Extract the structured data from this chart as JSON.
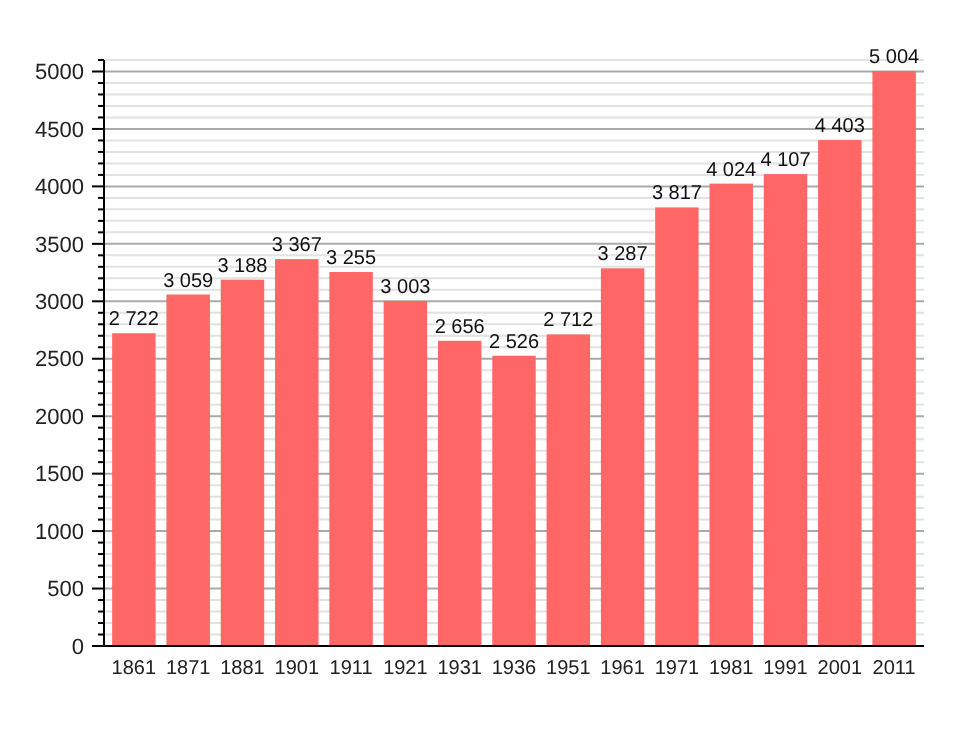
{
  "chart_data": {
    "type": "bar",
    "categories": [
      "1861",
      "1871",
      "1881",
      "1901",
      "1911",
      "1921",
      "1931",
      "1936",
      "1951",
      "1961",
      "1971",
      "1981",
      "1991",
      "2001",
      "2011"
    ],
    "values": [
      2722,
      3059,
      3188,
      3367,
      3255,
      3003,
      2656,
      2526,
      2712,
      3287,
      3817,
      4024,
      4107,
      4403,
      5004
    ],
    "value_labels": [
      "2 722",
      "3 059",
      "3 188",
      "3 367",
      "3 255",
      "3 003",
      "2 656",
      "2 526",
      "2 712",
      "3 287",
      "3 817",
      "4 024",
      "4 107",
      "4 403",
      "5 004"
    ],
    "color": "#ff6666",
    "ylim": [
      0,
      5100
    ],
    "yticks": [
      0,
      {
        "value": 100,
        "label": null
      },
      {
        "value": 200,
        "label": null
      },
      {
        "value": 300,
        "label": null
      },
      {
        "value": 400,
        "label": null
      },
      500,
      {
        "value": 600,
        "label": null
      },
      {
        "value": 700,
        "label": null
      },
      {
        "value": 800,
        "label": null
      },
      {
        "value": 900,
        "label": null
      },
      1000,
      {
        "value": 1100,
        "label": null
      },
      {
        "value": 1200,
        "label": null
      },
      {
        "value": 1300,
        "label": null
      },
      {
        "value": 1400,
        "label": null
      },
      1500,
      {
        "value": 1600,
        "label": null
      },
      {
        "value": 1700,
        "label": null
      },
      {
        "value": 1800,
        "label": null
      },
      {
        "value": 1900,
        "label": null
      },
      2000,
      {
        "value": 2100,
        "label": null
      },
      {
        "value": 2200,
        "label": null
      },
      {
        "value": 2300,
        "label": null
      },
      {
        "value": 2400,
        "label": null
      },
      2500,
      {
        "value": 2600,
        "label": null
      },
      {
        "value": 2700,
        "label": null
      },
      {
        "value": 2800,
        "label": null
      },
      {
        "value": 2900,
        "label": null
      },
      3000,
      {
        "value": 3100,
        "label": null
      },
      {
        "value": 3200,
        "label": null
      },
      {
        "value": 3300,
        "label": null
      },
      {
        "value": 3400,
        "label": null
      },
      3500,
      {
        "value": 3600,
        "label": null
      },
      {
        "value": 3700,
        "label": null
      },
      {
        "value": 3800,
        "label": null
      },
      {
        "value": 3900,
        "label": null
      },
      4000,
      {
        "value": 4100,
        "label": null
      },
      {
        "value": 4200,
        "label": null
      },
      {
        "value": 4300,
        "label": null
      },
      {
        "value": 4400,
        "label": null
      },
      4500,
      {
        "value": 4600,
        "label": null
      },
      {
        "value": 4700,
        "label": null
      },
      {
        "value": 4800,
        "label": null
      },
      {
        "value": 4900,
        "label": null
      },
      5000,
      {
        "value": 5100,
        "label": null
      }
    ],
    "grid": true
  }
}
